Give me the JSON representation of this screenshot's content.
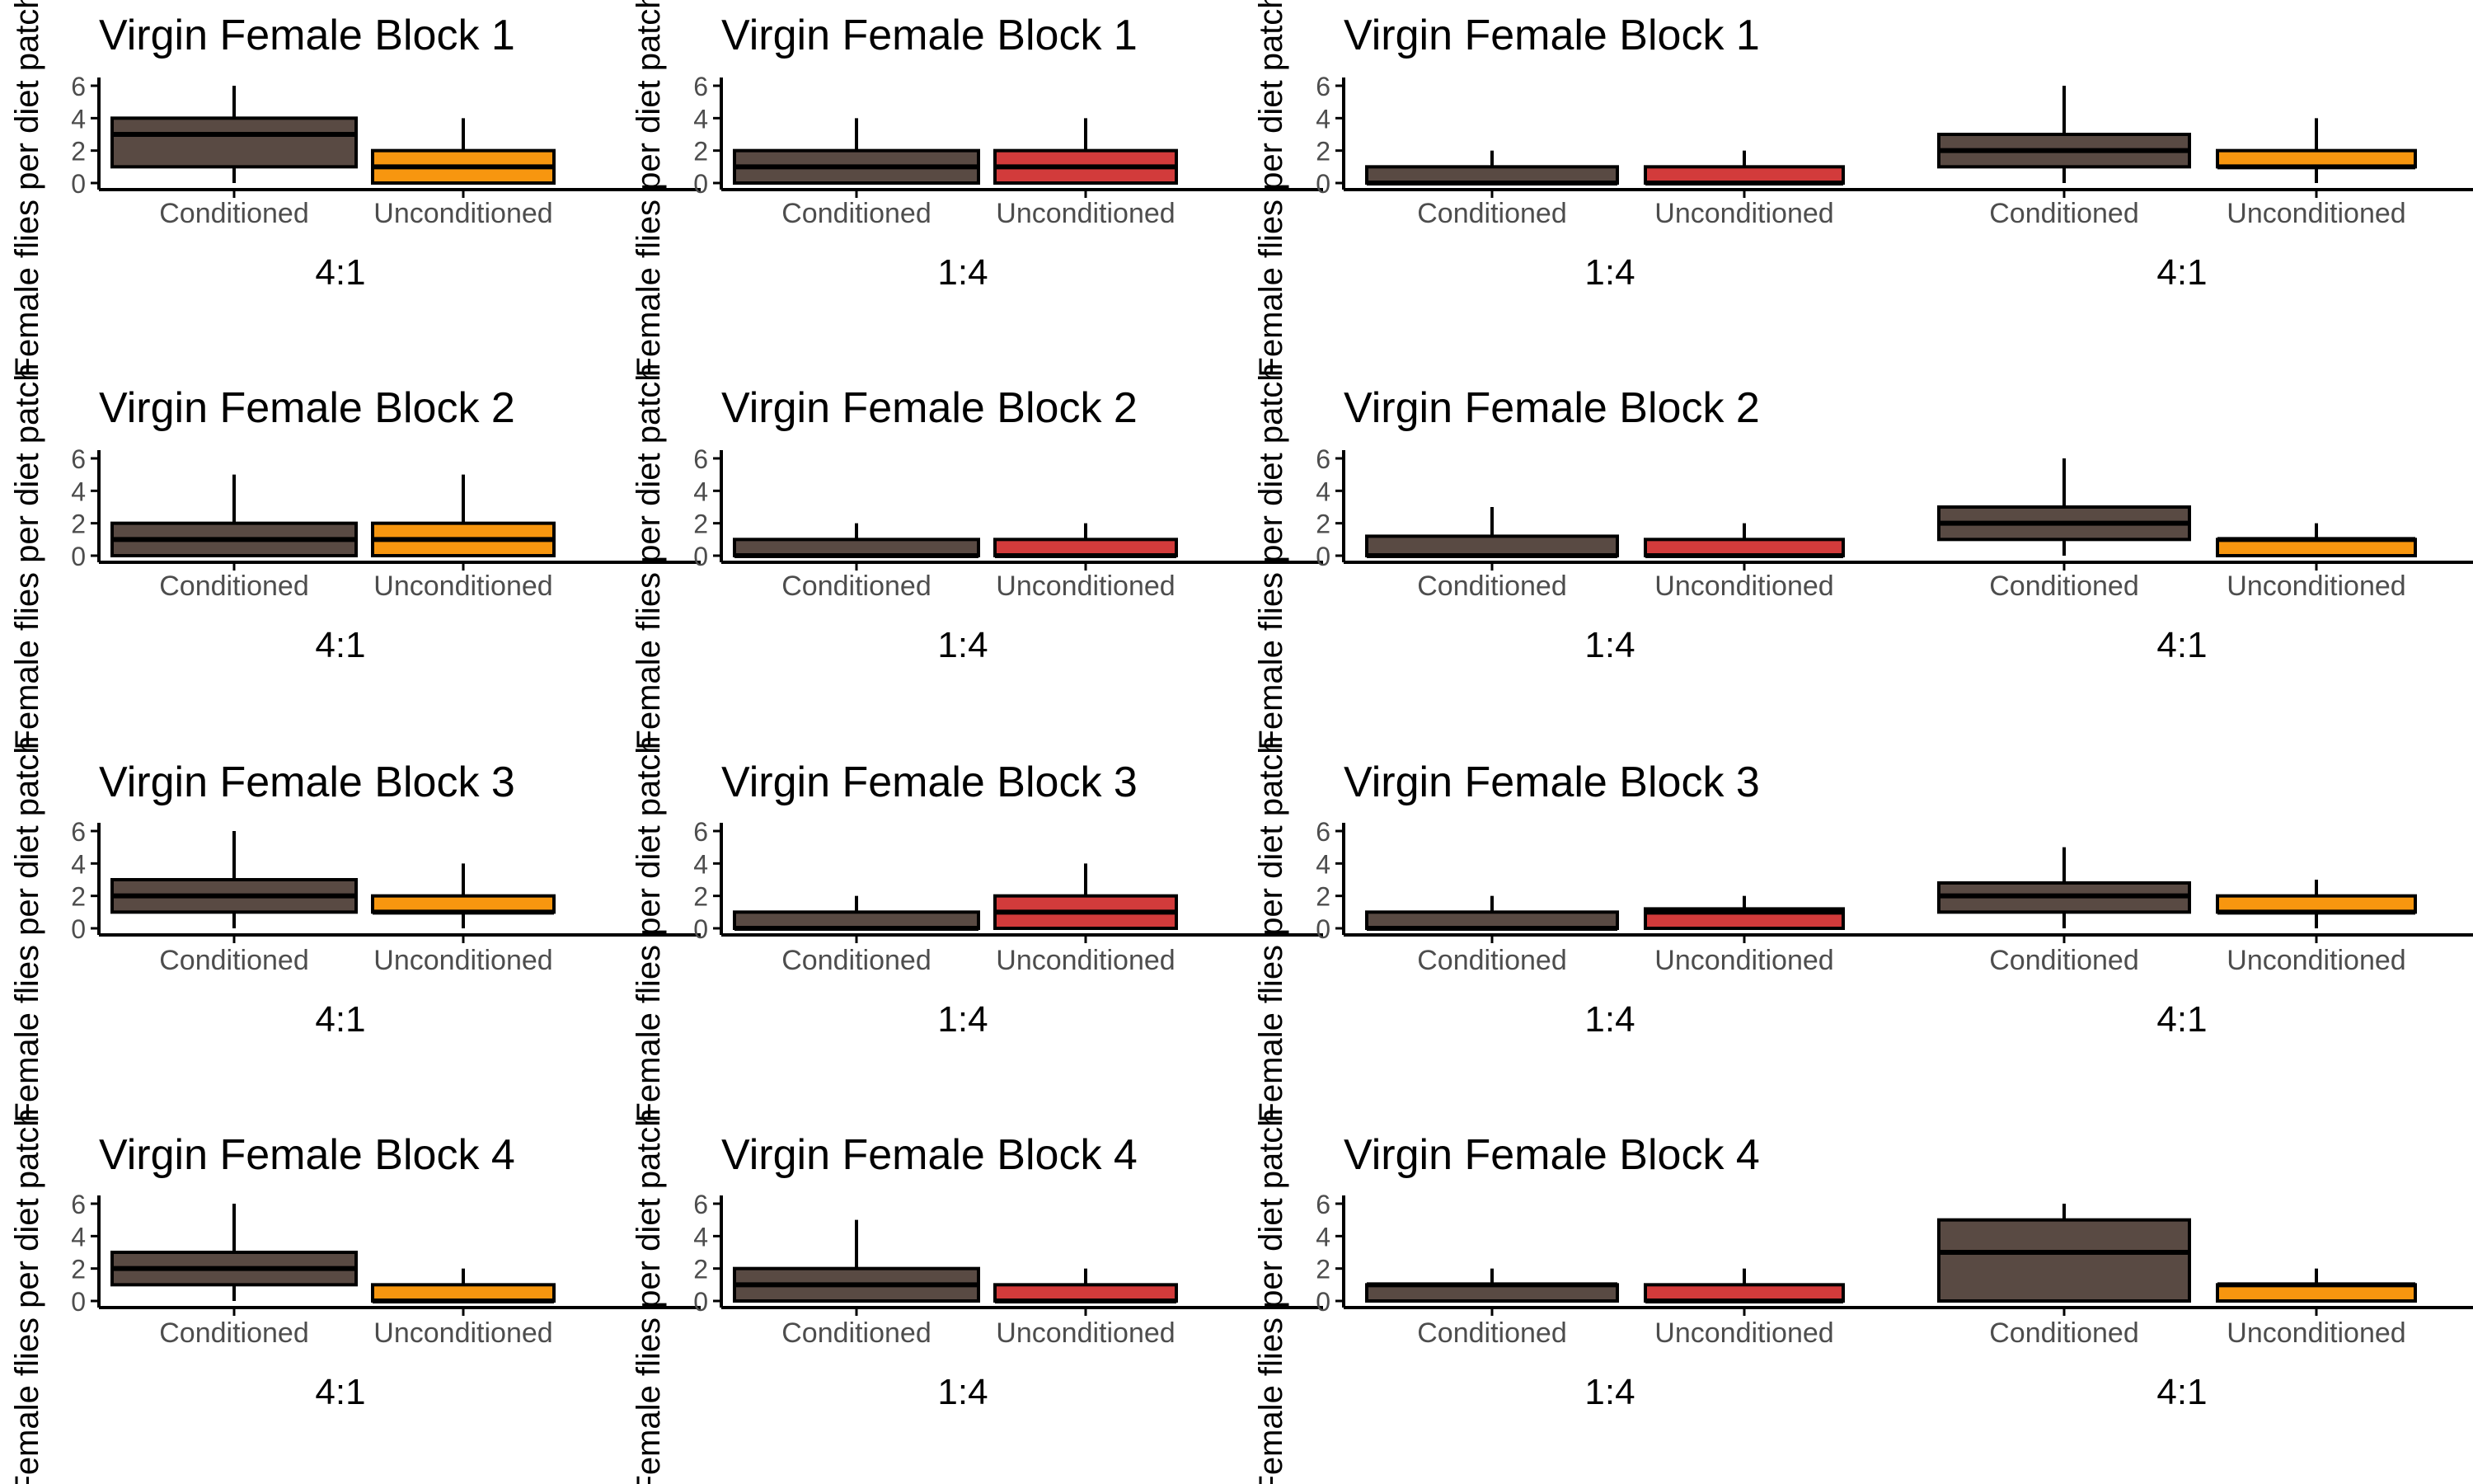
{
  "colors": {
    "conditioned": "#594a43",
    "unconditioned_4_1": "#f7960f",
    "unconditioned_1_4": "#d23b3b",
    "axis": "#000000",
    "tick_text": "#4d4d4d"
  },
  "chart_data": [
    {
      "type": "box",
      "title": "Virgin Female Block 1",
      "xlabel": "4:1",
      "ylabel": "Female flies per diet patch",
      "categories": [
        "Conditioned",
        "Unconditioned"
      ],
      "ylim": [
        0,
        6
      ],
      "yticks": [
        0,
        2,
        4,
        6
      ],
      "grid": false,
      "series": [
        {
          "q1": 1,
          "median": 3,
          "q3": 4,
          "whisker_low": 0,
          "whisker_high": 6
        },
        {
          "q1": 0,
          "median": 1,
          "q3": 2,
          "whisker_low": 0,
          "whisker_high": 4
        }
      ]
    },
    {
      "type": "box",
      "title": "Virgin Female Block 1",
      "xlabel": "1:4",
      "ylabel": "Female flies per diet patch",
      "categories": [
        "Conditioned",
        "Unconditioned"
      ],
      "ylim": [
        0,
        6
      ],
      "yticks": [
        0,
        2,
        4,
        6
      ],
      "grid": false,
      "series": [
        {
          "q1": 0,
          "median": 1,
          "q3": 2,
          "whisker_low": 0,
          "whisker_high": 4
        },
        {
          "q1": 0,
          "median": 1,
          "q3": 2,
          "whisker_low": 0,
          "whisker_high": 4
        }
      ]
    },
    {
      "type": "box",
      "title": "Virgin Female Block 1",
      "xlabel": "1:4",
      "ylabel": "Female flies per diet patch",
      "categories": [
        "Conditioned",
        "Unconditioned"
      ],
      "ylim": [
        0,
        6
      ],
      "yticks": [
        0,
        2,
        4,
        6
      ],
      "grid": false,
      "series": [
        {
          "q1": 0,
          "median": 0,
          "q3": 1,
          "whisker_low": 0,
          "whisker_high": 2
        },
        {
          "q1": 0,
          "median": 0,
          "q3": 1,
          "whisker_low": 0,
          "whisker_high": 2
        }
      ]
    },
    {
      "type": "box",
      "title": "",
      "xlabel": "4:1",
      "ylabel": "",
      "categories": [
        "Conditioned",
        "Unconditioned"
      ],
      "ylim": [
        0,
        6
      ],
      "yticks": [],
      "grid": false,
      "series": [
        {
          "q1": 1,
          "median": 2,
          "q3": 3,
          "whisker_low": 0,
          "whisker_high": 6
        },
        {
          "q1": 1,
          "median": 1,
          "q3": 2,
          "whisker_low": 0,
          "whisker_high": 4
        }
      ]
    },
    {
      "type": "box",
      "title": "Virgin Female  Block 2",
      "xlabel": "4:1",
      "ylabel": "Female flies per diet patch",
      "categories": [
        "Conditioned",
        "Unconditioned"
      ],
      "ylim": [
        0,
        6
      ],
      "yticks": [
        0,
        2,
        4,
        6
      ],
      "grid": false,
      "series": [
        {
          "q1": 0,
          "median": 1,
          "q3": 2,
          "whisker_low": 0,
          "whisker_high": 5
        },
        {
          "q1": 0,
          "median": 1,
          "q3": 2,
          "whisker_low": 0,
          "whisker_high": 5
        }
      ]
    },
    {
      "type": "box",
      "title": "Virgin Female Block 2",
      "xlabel": "1:4",
      "ylabel": "Female flies per diet patch",
      "categories": [
        "Conditioned",
        "Unconditioned"
      ],
      "ylim": [
        0,
        6
      ],
      "yticks": [
        0,
        2,
        4,
        6
      ],
      "grid": false,
      "series": [
        {
          "q1": 0,
          "median": 0,
          "q3": 1,
          "whisker_low": 0,
          "whisker_high": 2
        },
        {
          "q1": 0,
          "median": 0,
          "q3": 1,
          "whisker_low": 0,
          "whisker_high": 2
        }
      ]
    },
    {
      "type": "box",
      "title": "Virgin Female Block 2",
      "xlabel": "1:4",
      "ylabel": "Female flies per diet patch",
      "categories": [
        "Conditioned",
        "Unconditioned"
      ],
      "ylim": [
        0,
        6
      ],
      "yticks": [
        0,
        2,
        4,
        6
      ],
      "grid": false,
      "series": [
        {
          "q1": 0,
          "median": 0,
          "q3": 1.2,
          "whisker_low": 0,
          "whisker_high": 3
        },
        {
          "q1": 0,
          "median": 0,
          "q3": 1,
          "whisker_low": 0,
          "whisker_high": 2
        }
      ]
    },
    {
      "type": "box",
      "title": "",
      "xlabel": "4:1",
      "ylabel": "",
      "categories": [
        "Conditioned",
        "Unconditioned"
      ],
      "ylim": [
        0,
        6
      ],
      "yticks": [],
      "grid": false,
      "series": [
        {
          "q1": 1,
          "median": 2,
          "q3": 3,
          "whisker_low": 0,
          "whisker_high": 6
        },
        {
          "q1": 0,
          "median": 1,
          "q3": 1,
          "whisker_low": 0,
          "whisker_high": 2
        }
      ]
    },
    {
      "type": "box",
      "title": "Virgin Female  Block 3",
      "xlabel": "4:1",
      "ylabel": "Female flies per diet patch",
      "categories": [
        "Conditioned",
        "Unconditioned"
      ],
      "ylim": [
        0,
        6
      ],
      "yticks": [
        0,
        2,
        4,
        6
      ],
      "grid": false,
      "series": [
        {
          "q1": 1,
          "median": 2,
          "q3": 3,
          "whisker_low": 0,
          "whisker_high": 6
        },
        {
          "q1": 1,
          "median": 1,
          "q3": 2,
          "whisker_low": 0,
          "whisker_high": 4
        }
      ]
    },
    {
      "type": "box",
      "title": "Virgin Female Block 3",
      "xlabel": "1:4",
      "ylabel": "Female flies per diet patch",
      "categories": [
        "Conditioned",
        "Unconditioned"
      ],
      "ylim": [
        0,
        6
      ],
      "yticks": [
        0,
        2,
        4,
        6
      ],
      "grid": false,
      "series": [
        {
          "q1": 0,
          "median": 0,
          "q3": 1,
          "whisker_low": 0,
          "whisker_high": 2
        },
        {
          "q1": 0,
          "median": 1,
          "q3": 2,
          "whisker_low": 0,
          "whisker_high": 4
        }
      ]
    },
    {
      "type": "box",
      "title": "Virgin Female Block 3",
      "xlabel": "1:4",
      "ylabel": "Female flies per diet patch",
      "categories": [
        "Conditioned",
        "Unconditioned"
      ],
      "ylim": [
        0,
        6
      ],
      "yticks": [
        0,
        2,
        4,
        6
      ],
      "grid": false,
      "series": [
        {
          "q1": 0,
          "median": 0,
          "q3": 1,
          "whisker_low": 0,
          "whisker_high": 2
        },
        {
          "q1": 0,
          "median": 1,
          "q3": 1.2,
          "whisker_low": 0,
          "whisker_high": 2
        }
      ]
    },
    {
      "type": "box",
      "title": "",
      "xlabel": "4:1",
      "ylabel": "",
      "categories": [
        "Conditioned",
        "Unconditioned"
      ],
      "ylim": [
        0,
        6
      ],
      "yticks": [],
      "grid": false,
      "series": [
        {
          "q1": 1,
          "median": 2,
          "q3": 2.8,
          "whisker_low": 0,
          "whisker_high": 5
        },
        {
          "q1": 1,
          "median": 1,
          "q3": 2,
          "whisker_low": 0,
          "whisker_high": 3
        }
      ]
    },
    {
      "type": "box",
      "title": "Virgin Female  Block 4",
      "xlabel": "4:1",
      "ylabel": "Female flies per diet patch",
      "categories": [
        "Conditioned",
        "Unconditioned"
      ],
      "ylim": [
        0,
        6
      ],
      "yticks": [
        0,
        2,
        4,
        6
      ],
      "grid": false,
      "series": [
        {
          "q1": 1,
          "median": 2,
          "q3": 3,
          "whisker_low": 0,
          "whisker_high": 6
        },
        {
          "q1": 0,
          "median": 0,
          "q3": 1,
          "whisker_low": 0,
          "whisker_high": 2
        }
      ]
    },
    {
      "type": "box",
      "title": "Virgin Female Block 4",
      "xlabel": "1:4",
      "ylabel": "Female flies per diet patch",
      "categories": [
        "Conditioned",
        "Unconditioned"
      ],
      "ylim": [
        0,
        6
      ],
      "yticks": [
        0,
        2,
        4,
        6
      ],
      "grid": false,
      "series": [
        {
          "q1": 0,
          "median": 1,
          "q3": 2,
          "whisker_low": 0,
          "whisker_high": 5
        },
        {
          "q1": 0,
          "median": 0,
          "q3": 1,
          "whisker_low": 0,
          "whisker_high": 2
        }
      ]
    },
    {
      "type": "box",
      "title": "Virgin Female Block 4",
      "xlabel": "1:4",
      "ylabel": "Female flies per diet patch",
      "categories": [
        "Conditioned",
        "Unconditioned"
      ],
      "ylim": [
        0,
        6
      ],
      "yticks": [
        0,
        2,
        4,
        6
      ],
      "grid": false,
      "series": [
        {
          "q1": 0,
          "median": 1,
          "q3": 1,
          "whisker_low": 0,
          "whisker_high": 2
        },
        {
          "q1": 0,
          "median": 0,
          "q3": 1,
          "whisker_low": 0,
          "whisker_high": 2
        }
      ]
    },
    {
      "type": "box",
      "title": "",
      "xlabel": "4:1",
      "ylabel": "",
      "categories": [
        "Conditioned",
        "Unconditioned"
      ],
      "ylim": [
        0,
        6
      ],
      "yticks": [],
      "grid": false,
      "series": [
        {
          "q1": 0,
          "median": 3,
          "q3": 5,
          "whisker_low": 0,
          "whisker_high": 6
        },
        {
          "q1": 0,
          "median": 1,
          "q3": 1,
          "whisker_low": 0,
          "whisker_high": 2
        }
      ]
    }
  ]
}
